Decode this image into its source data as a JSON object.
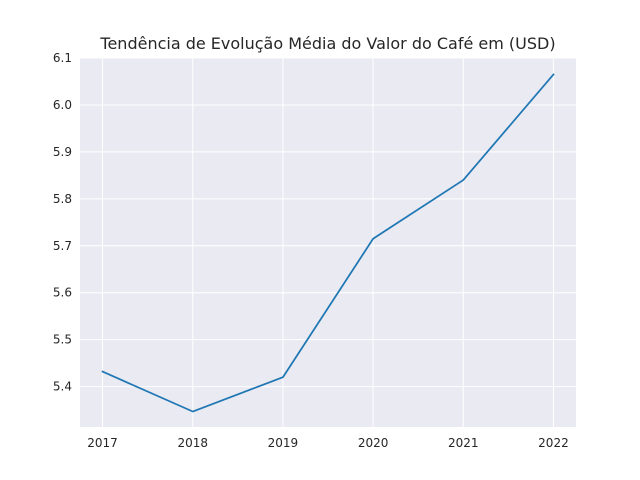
{
  "chart_data": {
    "type": "line",
    "title": "Tendência de Evolução Média do Valor do Café em (USD)",
    "xlabel": "",
    "ylabel": "",
    "x": [
      2017,
      2018,
      2019,
      2020,
      2021,
      2022
    ],
    "x_tick_labels": [
      "2017",
      "2018",
      "2019",
      "2020",
      "2021",
      "2022"
    ],
    "series": [
      {
        "values": [
          5.432,
          5.347,
          5.42,
          5.715,
          5.84,
          6.065
        ],
        "color": "#1f77b4"
      }
    ],
    "xlim": [
      2016.75,
      2022.25
    ],
    "ylim": [
      5.314,
      6.1
    ],
    "y_ticks": [
      5.4,
      5.5,
      5.6,
      5.7,
      5.8,
      5.9,
      6.0,
      6.1
    ],
    "y_tick_labels": [
      "5.4",
      "5.5",
      "5.6",
      "5.7",
      "5.8",
      "5.9",
      "6.0",
      "6.1"
    ],
    "grid": true,
    "legend": "none",
    "style": {
      "plot_background": "#eaeaf2",
      "grid_color": "#ffffff",
      "text_color": "#262626"
    }
  }
}
